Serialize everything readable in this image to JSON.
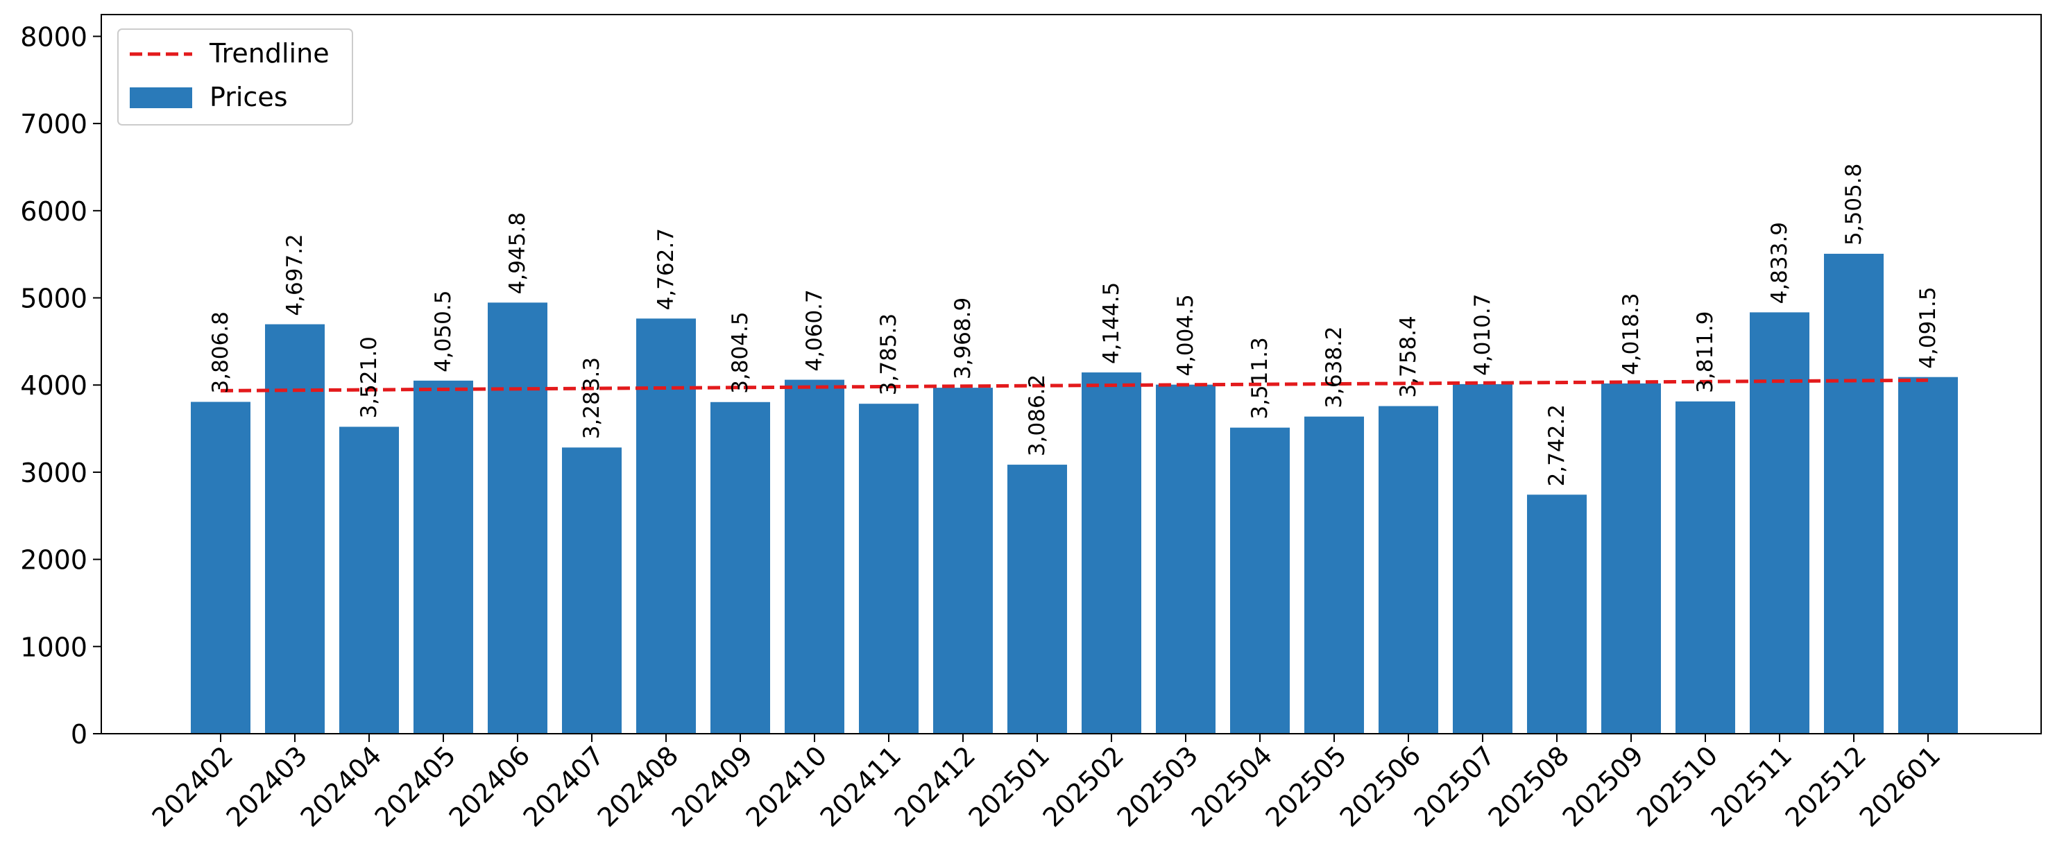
{
  "chart_data": {
    "type": "bar",
    "categories": [
      "202402",
      "202403",
      "202404",
      "202405",
      "202406",
      "202407",
      "202408",
      "202409",
      "202410",
      "202411",
      "202412",
      "202501",
      "202502",
      "202503",
      "202504",
      "202505",
      "202506",
      "202507",
      "202508",
      "202509",
      "202510",
      "202511",
      "202512",
      "202601"
    ],
    "series": [
      {
        "name": "Prices",
        "values": [
          3806.8,
          4697.2,
          3521.0,
          4050.5,
          4945.8,
          3283.3,
          4762.7,
          3804.5,
          4060.7,
          3785.3,
          3968.9,
          3086.2,
          4144.5,
          4004.5,
          3511.3,
          3638.2,
          3758.4,
          4010.7,
          2742.2,
          4018.3,
          3811.9,
          4833.9,
          5505.8,
          4091.5
        ],
        "labels": [
          "3,806.8",
          "4,697.2",
          "3,521.0",
          "4,050.5",
          "4,945.8",
          "3,283.3",
          "4,762.7",
          "3,804.5",
          "4,060.7",
          "3,785.3",
          "3,968.9",
          "3,086.2",
          "4,144.5",
          "4,004.5",
          "3,511.3",
          "3,638.2",
          "3,758.4",
          "4,010.7",
          "2,742.2",
          "4,018.3",
          "3,811.9",
          "4,833.9",
          "5,505.8",
          "4,091.5"
        ],
        "color": "#2a7ab9"
      },
      {
        "name": "Trendline",
        "style": "dashed",
        "color": "#e31a1c",
        "start": 3935,
        "end": 4055
      }
    ],
    "title": "",
    "xlabel": "",
    "ylabel": "",
    "ylim": [
      0,
      8250
    ],
    "yticks": [
      "0",
      "1000",
      "2000",
      "3000",
      "4000",
      "5000",
      "6000",
      "7000",
      "8000"
    ],
    "ytick_values": [
      0,
      1000,
      2000,
      3000,
      4000,
      5000,
      6000,
      7000,
      8000
    ],
    "grid": false,
    "legend_position": "top-left"
  }
}
